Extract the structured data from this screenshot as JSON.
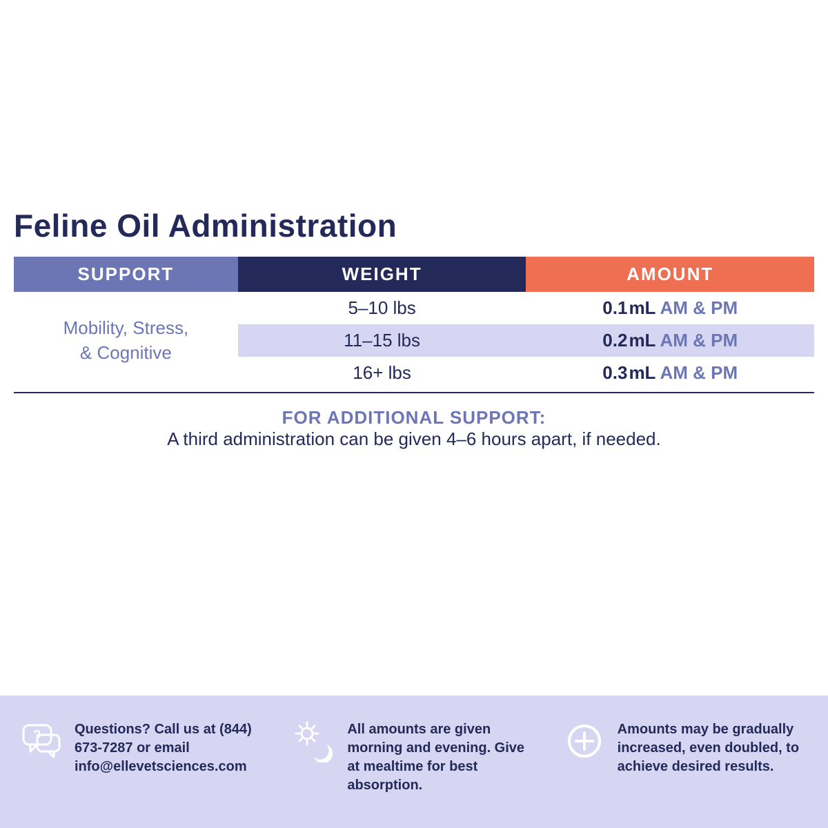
{
  "colors": {
    "title": "#232a5a",
    "header_support_bg": "#6c76b5",
    "header_weight_bg": "#232a5a",
    "header_amount_bg": "#ef6f52",
    "header_text": "#ffffff",
    "row_alt_bg": "#d7d6f2",
    "row_bg": "#ffffff",
    "support_text": "#6c76b5",
    "body_text": "#232a5a",
    "amount_note": "#6c76b5",
    "rule": "#232a5a",
    "addl_title": "#6c76b5",
    "addl_body": "#232a5a",
    "footer_bg": "#d7d6f2",
    "footer_text": "#232a5a",
    "footer_icon": "#ffffff"
  },
  "title": "Feline Oil Administration",
  "table": {
    "headers": {
      "support": "SUPPORT",
      "weight": "WEIGHT",
      "amount": "AMOUNT"
    },
    "support_label_line1": "Mobility, Stress,",
    "support_label_line2": "& Cognitive",
    "rows": [
      {
        "weight": "5–10 lbs",
        "amount_val": "0.1",
        "amount_unit": "mL",
        "amount_note": "AM & PM",
        "alt": false
      },
      {
        "weight": "11–15 lbs",
        "amount_val": "0.2",
        "amount_unit": "mL",
        "amount_note": "AM & PM",
        "alt": true
      },
      {
        "weight": "16+ lbs",
        "amount_val": "0.3",
        "amount_unit": "mL",
        "amount_note": "AM & PM",
        "alt": false
      }
    ]
  },
  "additional": {
    "title": "FOR ADDITIONAL SUPPORT:",
    "body": "A third administration can be given 4–6 hours apart, if needed."
  },
  "footer": {
    "items": [
      {
        "icon": "chat-question",
        "text": "Questions? Call us at (844) 673-7287 or email info@ellevetsciences.com"
      },
      {
        "icon": "sun-moon",
        "text": "All amounts are given morning and evening. Give at mealtime for best absorption."
      },
      {
        "icon": "plus-circle",
        "text": "Amounts may be gradually increased, even doubled, to achieve desired results."
      }
    ]
  }
}
